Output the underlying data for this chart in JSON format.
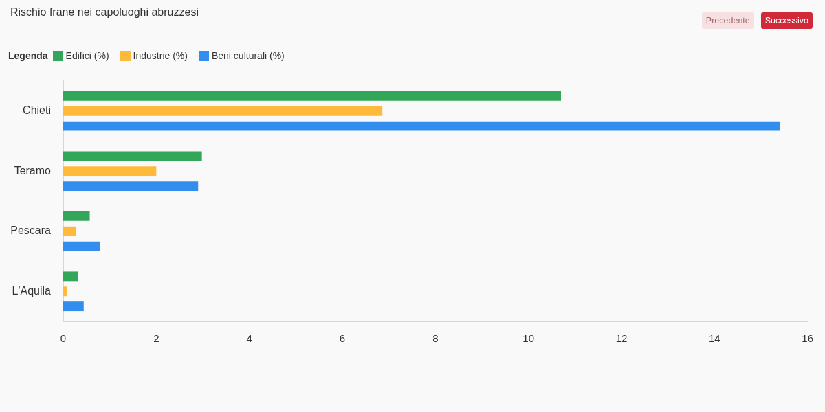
{
  "chart_data": {
    "type": "bar",
    "orientation": "horizontal",
    "title": "Rischio frane nei capoluoghi abruzzesi",
    "legend_title": "Legenda",
    "legend": "top left",
    "categories": [
      "Chieti",
      "Teramo",
      "Pescara",
      "L'Aquila"
    ],
    "series": [
      {
        "name": "Edifici (%)",
        "color": "#34a65a",
        "values": [
          10.7,
          2.98,
          0.57,
          0.32
        ]
      },
      {
        "name": "Industrie (%)",
        "color": "#ffb93b",
        "values": [
          6.86,
          2.0,
          0.28,
          0.08
        ]
      },
      {
        "name": "Beni culturali (%)",
        "color": "#328def",
        "values": [
          15.41,
          2.9,
          0.79,
          0.44
        ]
      }
    ],
    "xlim": [
      0,
      16
    ],
    "xticks": [
      0,
      2,
      4,
      6,
      8,
      10,
      12,
      14,
      16
    ],
    "annotations": [
      "Precedente",
      "Successivo"
    ]
  }
}
